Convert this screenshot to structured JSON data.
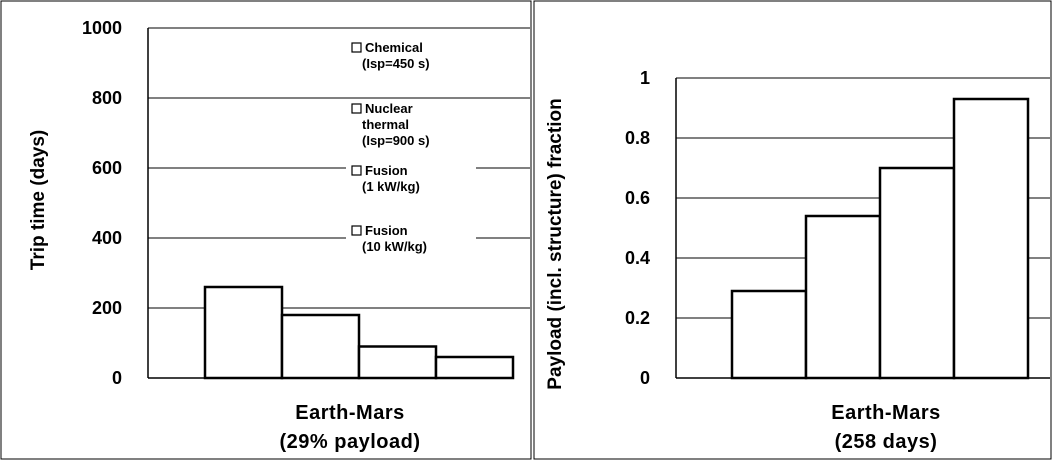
{
  "chart_data": [
    {
      "type": "bar",
      "ylabel": "Trip time (days)",
      "xlabel_lines": [
        "Earth-Mars",
        "(29% payload)"
      ],
      "ylim": [
        0,
        1000
      ],
      "yticks": [
        "0",
        "200",
        "400",
        "600",
        "800",
        "1000"
      ],
      "grid": true,
      "legend_position": "right",
      "series": [
        {
          "name_lines": [
            "Chemical",
            "(Isp=450 s)"
          ],
          "values": [
            260
          ]
        },
        {
          "name_lines": [
            "Nuclear",
            "thermal",
            "(Isp=900 s)"
          ],
          "values": [
            180
          ]
        },
        {
          "name_lines": [
            "Fusion",
            "(1 kW/kg)"
          ],
          "values": [
            90
          ]
        },
        {
          "name_lines": [
            "Fusion",
            "(10 kW/kg)"
          ],
          "values": [
            60
          ]
        }
      ]
    },
    {
      "type": "bar",
      "ylabel": "Payload (incl. structure) fraction",
      "xlabel_lines": [
        "Earth-Mars",
        "(258 days)"
      ],
      "ylim": [
        0,
        1
      ],
      "yticks": [
        "0",
        "0.2",
        "0.4",
        "0.6",
        "0.8",
        "1"
      ],
      "grid": true,
      "values": [
        0.29,
        0.54,
        0.7,
        0.93
      ]
    }
  ]
}
